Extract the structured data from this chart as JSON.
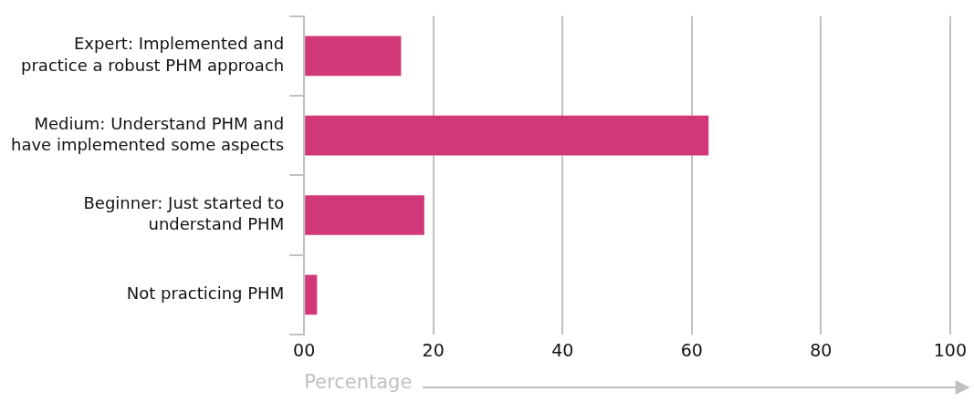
{
  "chart_data": {
    "type": "bar",
    "orientation": "horizontal",
    "xlabel": "Percentage",
    "categories": [
      "Expert: Implemented and practice a robust PHM approach",
      "Medium: Understand PHM and have implemented some aspects",
      "Beginner: Just started to understand PHM",
      "Not practicing PHM"
    ],
    "values": [
      15.0,
      62.6,
      18.6,
      2.0
    ],
    "color": "#d13878",
    "xlim": [
      0,
      100
    ],
    "xticks": [
      {
        "value": 0,
        "label": "00"
      },
      20,
      40,
      60,
      80,
      100
    ],
    "grid": "x",
    "legend": false
  }
}
